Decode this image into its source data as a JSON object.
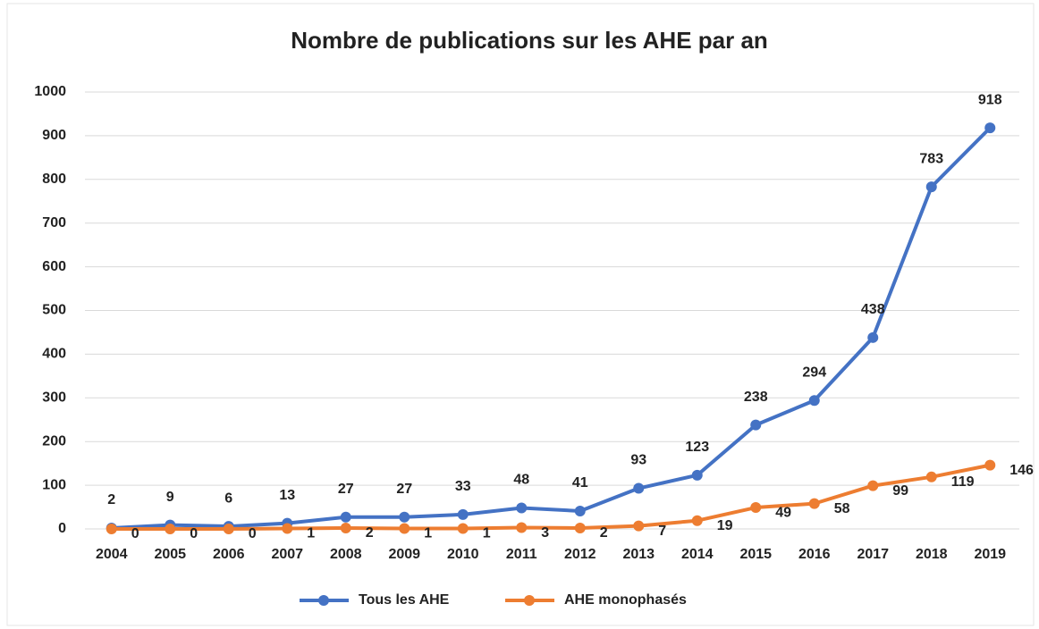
{
  "chart_data": {
    "type": "line",
    "title": "Nombre de publications sur les AHE par an",
    "categories": [
      "2004",
      "2005",
      "2006",
      "2007",
      "2008",
      "2009",
      "2010",
      "2011",
      "2012",
      "2013",
      "2014",
      "2015",
      "2016",
      "2017",
      "2018",
      "2019"
    ],
    "series": [
      {
        "name": "Tous les AHE",
        "color": "#4472c4",
        "values": [
          2,
          9,
          6,
          13,
          27,
          27,
          33,
          48,
          41,
          93,
          123,
          238,
          294,
          438,
          783,
          918
        ]
      },
      {
        "name": "AHE monophasés",
        "color": "#ed7d31",
        "values": [
          0,
          0,
          0,
          1,
          2,
          1,
          1,
          3,
          2,
          7,
          19,
          49,
          58,
          99,
          119,
          146
        ]
      }
    ],
    "ylim": [
      0,
      1000
    ],
    "yticks": [
      0,
      100,
      200,
      300,
      400,
      500,
      600,
      700,
      800,
      900,
      1000
    ],
    "grid": true,
    "legend": "bottom"
  }
}
